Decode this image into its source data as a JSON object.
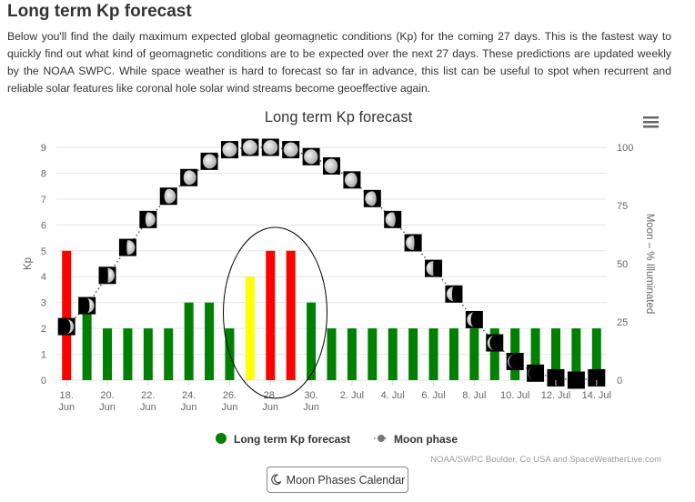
{
  "page": {
    "title": "Long term Kp forecast",
    "intro": "Below you'll find the daily maximum expected global geomagnetic conditions (Kp) for the coming 27 days. This is the fastest way to quickly find out what kind of geomagnetic conditions are to be expected over the next 27 days. These predictions are updated weekly by the NOAA SWPC. While space weather is hard to forecast so far in advance, this list can be useful to spot when recurrent and reliable solar features like coronal hole solar wind streams become geoeffective again."
  },
  "chart_data": {
    "type": "bar",
    "title": "Long term Kp forecast",
    "ylabel": "Kp",
    "y2label": "Moon – % Illuminated",
    "ylim": [
      0,
      9
    ],
    "y2lim": [
      0,
      100
    ],
    "yticks": [
      "0",
      "1",
      "2",
      "3",
      "4",
      "5",
      "6",
      "7",
      "8",
      "9"
    ],
    "y2ticks": [
      "0",
      "25",
      "50",
      "75",
      "100"
    ],
    "categories": [
      "18. Jun",
      "19. Jun",
      "20. Jun",
      "21. Jun",
      "22. Jun",
      "23. Jun",
      "24. Jun",
      "25. Jun",
      "26. Jun",
      "27. Jun",
      "28. Jun",
      "29. Jun",
      "30. Jun",
      "1. Jul",
      "2. Jul",
      "3. Jul",
      "4. Jul",
      "5. Jul",
      "6. Jul",
      "7. Jul",
      "8. Jul",
      "9. Jul",
      "10. Jul",
      "11. Jul",
      "12. Jul",
      "13. Jul",
      "14. Jul"
    ],
    "xticks": [
      {
        "top": "18.",
        "bottom": "Jun"
      },
      {
        "top": "20.",
        "bottom": "Jun"
      },
      {
        "top": "22.",
        "bottom": "Jun"
      },
      {
        "top": "24.",
        "bottom": "Jun"
      },
      {
        "top": "26.",
        "bottom": "Jun"
      },
      {
        "top": "28.",
        "bottom": "Jun"
      },
      {
        "top": "30.",
        "bottom": "Jun"
      },
      {
        "top": "2. Jul",
        "bottom": ""
      },
      {
        "top": "4. Jul",
        "bottom": ""
      },
      {
        "top": "6. Jul",
        "bottom": ""
      },
      {
        "top": "8. Jul",
        "bottom": ""
      },
      {
        "top": "10. Jul",
        "bottom": ""
      },
      {
        "top": "12. Jul",
        "bottom": ""
      },
      {
        "top": "14. Jul",
        "bottom": ""
      }
    ],
    "series": [
      {
        "name": "Long term Kp forecast",
        "type": "bar",
        "values": [
          5,
          3,
          2,
          2,
          2,
          2,
          3,
          3,
          2,
          4,
          5,
          5,
          3,
          2,
          2,
          2,
          2,
          2,
          2,
          2,
          2,
          2,
          2,
          2,
          2,
          2,
          2
        ]
      },
      {
        "name": "Moon phase",
        "type": "line",
        "values": [
          23,
          32,
          45,
          57,
          69,
          79,
          87,
          94,
          99,
          100,
          100,
          99,
          96,
          92,
          86,
          78,
          69,
          59,
          48,
          37,
          26,
          16,
          8,
          3,
          1,
          0,
          1
        ]
      }
    ],
    "colors": {
      "green": "#008000",
      "yellow": "#ffff00",
      "red": "#ff0000",
      "moon_marker": "#000000",
      "moon_legend": "#777777",
      "grid": "#e6e6e6"
    },
    "annotation": "ellipse around 26. Jun – 30. Jun",
    "credits": "NOAA/SWPC Boulder, Co USA and SpaceWeatherLive.com",
    "legend_position": "bottom-center",
    "grid": true
  },
  "toolbar": {
    "menu_icon": "hamburger-icon"
  },
  "button": {
    "label": "Moon Phases Calendar",
    "icon": "moon-icon"
  }
}
